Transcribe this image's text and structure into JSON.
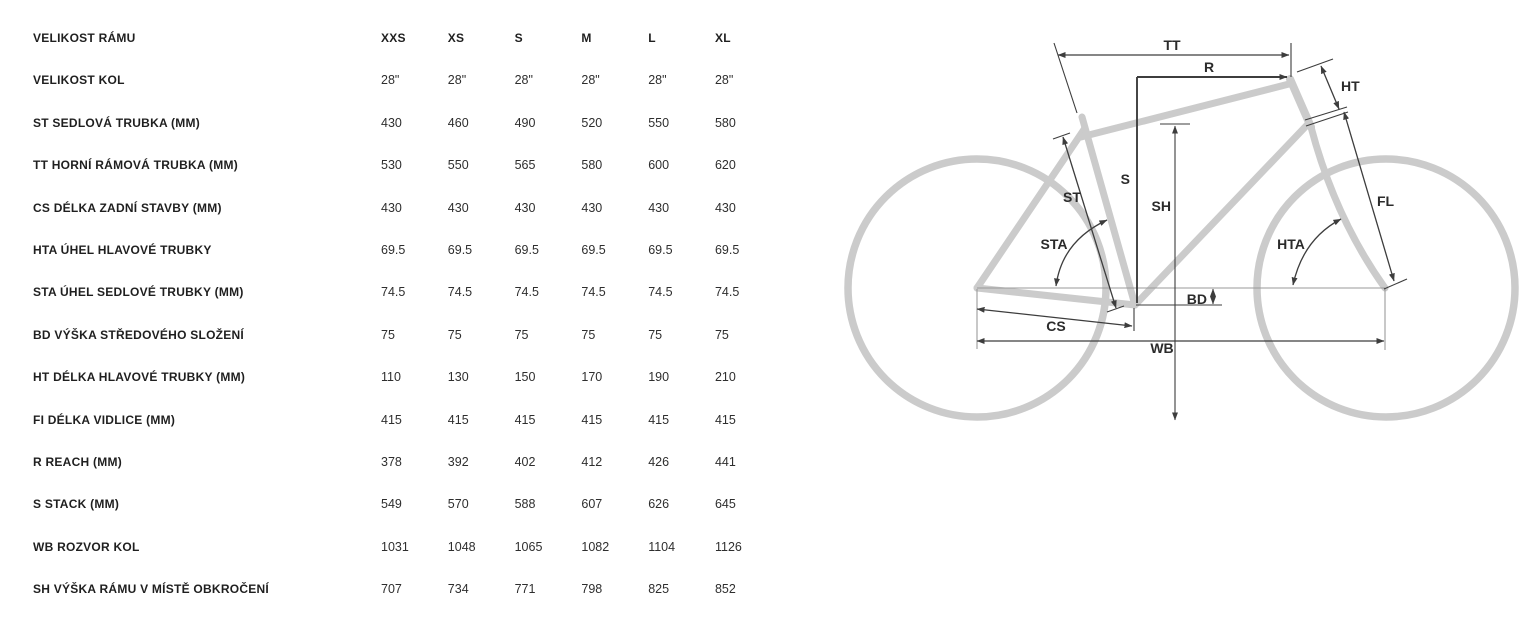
{
  "table": {
    "size_header": {
      "label": "VELIKOST RÁMU",
      "sizes": [
        "XXS",
        "XS",
        "S",
        "M",
        "L",
        "XL"
      ]
    },
    "rows": [
      {
        "label": "VELIKOST KOL",
        "values": [
          "28\"",
          "28\"",
          "28\"",
          "28\"",
          "28\"",
          "28\""
        ]
      },
      {
        "label": "ST SEDLOVÁ TRUBKA (MM)",
        "values": [
          "430",
          "460",
          "490",
          "520",
          "550",
          "580"
        ]
      },
      {
        "label": "TT HORNÍ RÁMOVÁ TRUBKA (MM)",
        "values": [
          "530",
          "550",
          "565",
          "580",
          "600",
          "620"
        ]
      },
      {
        "label": "CS DÉLKA ZADNÍ STAVBY (MM)",
        "values": [
          "430",
          "430",
          "430",
          "430",
          "430",
          "430"
        ]
      },
      {
        "label": "HTA ÚHEL HLAVOVÉ TRUBKY",
        "values": [
          "69.5",
          "69.5",
          "69.5",
          "69.5",
          "69.5",
          "69.5"
        ]
      },
      {
        "label": "STA ÚHEL SEDLOVÉ TRUBKY (MM)",
        "values": [
          "74.5",
          "74.5",
          "74.5",
          "74.5",
          "74.5",
          "74.5"
        ]
      },
      {
        "label": "BD VÝŠKA STŘEDOVÉHO SLOŽENÍ",
        "values": [
          "75",
          "75",
          "75",
          "75",
          "75",
          "75"
        ]
      },
      {
        "label": "HT DÉLKA HLAVOVÉ TRUBKY (MM)",
        "values": [
          "110",
          "130",
          "150",
          "170",
          "190",
          "210"
        ]
      },
      {
        "label": "FI DÉLKA VIDLICE (MM)",
        "values": [
          "415",
          "415",
          "415",
          "415",
          "415",
          "415"
        ]
      },
      {
        "label": "R REACH (MM)",
        "values": [
          "378",
          "392",
          "402",
          "412",
          "426",
          "441"
        ]
      },
      {
        "label": "S STACK (MM)",
        "values": [
          "549",
          "570",
          "588",
          "607",
          "626",
          "645"
        ]
      },
      {
        "label": "WB ROZVOR KOL",
        "values": [
          "1031",
          "1048",
          "1065",
          "1082",
          "1104",
          "1126"
        ]
      },
      {
        "label": "SH VÝŠKA RÁMU V MÍSTĚ OBKROČENÍ",
        "values": [
          "707",
          "734",
          "771",
          "798",
          "825",
          "852"
        ]
      }
    ],
    "colors": {
      "label_text": "#1f1f1f",
      "value_text": "#2e2e2e"
    }
  },
  "diagram": {
    "labels": {
      "tt": "TT",
      "r": "R",
      "ht": "HT",
      "st": "ST",
      "s": "S",
      "sh": "SH",
      "sta": "STA",
      "hta": "HTA",
      "bd": "BD",
      "cs": "CS",
      "wb": "WB",
      "fl": "FL"
    },
    "colors": {
      "frame": "#cbcbcb",
      "dimension": "#3d3d3d",
      "reference": "#9a9a9a",
      "label_text": "#2b2b2b"
    }
  }
}
